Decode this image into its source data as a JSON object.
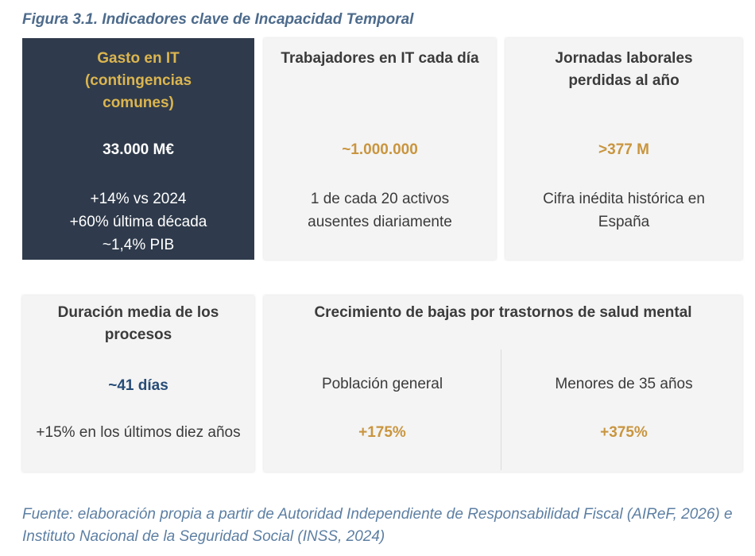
{
  "figure": {
    "title": "Figura 3.1. Indicadores clave de Incapacidad Temporal"
  },
  "cards": [
    {
      "title": "Gasto en IT (contingencias comunes)",
      "value": "33.000 M€",
      "notes": [
        "+14% vs 2024",
        "+60% última década",
        "~1,4% PIB"
      ]
    },
    {
      "title": "Trabajadores en IT cada día",
      "value": "~1.000.000",
      "notes": [
        "1 de cada 20 activos ausentes diariamente"
      ]
    },
    {
      "title": "Jornadas laborales perdidas al año",
      "value": ">377 M",
      "notes": [
        "Cifra inédita histórica en España"
      ]
    },
    {
      "title": "Duración media de los procesos",
      "value": "~41 días",
      "notes": [
        "+15% en los últimos diez años"
      ]
    }
  ],
  "mental_health": {
    "title": "Crecimiento de bajas por trastornos de salud mental",
    "columns": [
      {
        "label": "Población general",
        "value": "+175%"
      },
      {
        "label": "Menores de 35 años",
        "value": "+375%"
      }
    ]
  },
  "source": "Fuente: elaboración propia a partir de Autoridad Independiente de Responsabilidad Fiscal (AIReF, 2026) e Instituto Nacional de la Seguridad Social (INSS, 2024)"
}
